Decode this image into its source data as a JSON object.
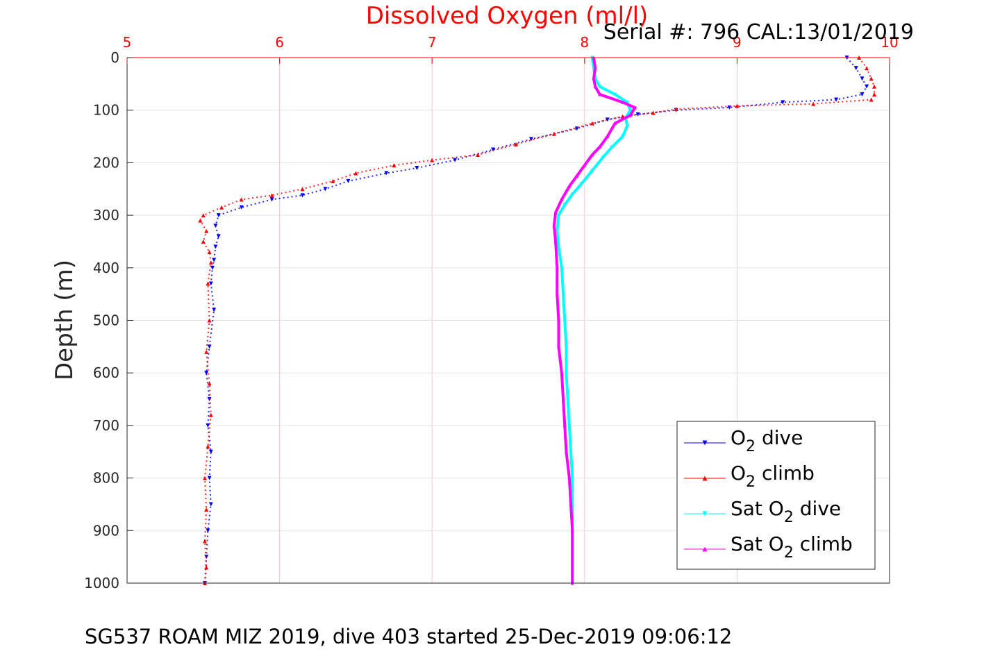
{
  "chart_data": {
    "type": "scatter",
    "title": "Dissolved Oxygen (ml/l)",
    "serial_text": "Serial #: 796  CAL:13/01/2019",
    "footer": "SG537 ROAM MIZ 2019, dive 403 started 25-Dec-2019 09:06:12",
    "ylabel": "Depth (m)",
    "xlim": [
      5,
      10
    ],
    "ylim": [
      0,
      1000
    ],
    "y_reversed": true,
    "x_axis_position": "top",
    "x_ticks": [
      "5",
      "6",
      "7",
      "8",
      "9",
      "10"
    ],
    "y_ticks": [
      "0",
      "100",
      "200",
      "300",
      "400",
      "500",
      "600",
      "700",
      "800",
      "900",
      "1000"
    ],
    "grid": true,
    "legend_position": "lower-right",
    "colors": {
      "x_axis": "#ff0000",
      "o2_dive": "#0000ff",
      "o2_climb": "#ff0000",
      "sat_dive": "#00ffff",
      "sat_climb": "#ff00ff"
    },
    "series": [
      {
        "name": "O2 dive",
        "legend": {
          "pre": "O",
          "sub": "2",
          "post": " dive"
        },
        "marker": "triangle-down",
        "x": [
          9.72,
          9.78,
          9.82,
          9.85,
          9.82,
          9.65,
          9.3,
          8.95,
          8.6,
          8.35,
          8.15,
          7.95,
          7.65,
          7.4,
          7.15,
          6.9,
          6.7,
          6.45,
          6.3,
          6.15,
          5.95,
          5.75,
          5.6,
          5.58,
          5.6,
          5.58,
          5.57,
          5.56,
          5.55,
          5.57,
          5.54,
          5.52,
          5.54,
          5.53,
          5.55,
          5.54,
          5.55,
          5.53,
          5.52,
          5.51
        ],
        "y": [
          0,
          20,
          40,
          55,
          70,
          80,
          85,
          95,
          100,
          108,
          118,
          135,
          155,
          175,
          195,
          210,
          220,
          235,
          250,
          262,
          270,
          285,
          300,
          320,
          340,
          360,
          385,
          400,
          430,
          480,
          550,
          600,
          650,
          700,
          750,
          800,
          850,
          900,
          950,
          1000
        ]
      },
      {
        "name": "O2 climb",
        "legend": {
          "pre": "O",
          "sub": "2",
          "post": " climb"
        },
        "marker": "triangle-up",
        "x": [
          9.8,
          9.85,
          9.88,
          9.9,
          9.9,
          9.88,
          9.5,
          9.0,
          8.6,
          8.45,
          8.25,
          8.05,
          7.8,
          7.55,
          7.3,
          7.0,
          6.75,
          6.5,
          6.35,
          6.15,
          5.95,
          5.75,
          5.62,
          5.5,
          5.48,
          5.52,
          5.5,
          5.54,
          5.55,
          5.53,
          5.54,
          5.52,
          5.54,
          5.55,
          5.53,
          5.51,
          5.52,
          5.51,
          5.52,
          5.51
        ],
        "y": [
          0,
          20,
          40,
          55,
          70,
          80,
          88,
          92,
          98,
          105,
          112,
          125,
          145,
          165,
          185,
          195,
          205,
          220,
          235,
          250,
          262,
          270,
          285,
          300,
          310,
          330,
          350,
          370,
          390,
          430,
          500,
          560,
          620,
          680,
          740,
          800,
          860,
          920,
          970,
          1000
        ]
      },
      {
        "name": "Sat O2 dive",
        "legend": {
          "pre": "Sat O",
          "sub": "2",
          "post": " dive"
        },
        "marker": "triangle-down",
        "x": [
          8.05,
          8.06,
          8.07,
          8.1,
          8.2,
          8.28,
          8.3,
          8.27,
          8.28,
          8.25,
          8.18,
          8.12,
          8.05,
          7.98,
          7.92,
          7.87,
          7.83,
          7.82,
          7.83,
          7.85,
          7.86,
          7.87,
          7.88,
          7.88,
          7.89,
          7.9,
          7.91,
          7.92,
          7.92,
          7.92,
          7.92
        ],
        "y": [
          0,
          20,
          40,
          55,
          70,
          85,
          100,
          115,
          130,
          150,
          170,
          190,
          215,
          240,
          260,
          280,
          300,
          330,
          360,
          400,
          450,
          500,
          550,
          600,
          650,
          700,
          750,
          800,
          850,
          900,
          1000
        ]
      },
      {
        "name": "Sat O2 climb",
        "legend": {
          "pre": "Sat O",
          "sub": "2",
          "post": " climb"
        },
        "marker": "triangle-up",
        "x": [
          8.06,
          8.07,
          8.06,
          8.07,
          8.1,
          8.25,
          8.33,
          8.3,
          8.2,
          8.15,
          8.1,
          8.05,
          8.0,
          7.95,
          7.9,
          7.85,
          7.81,
          7.8,
          7.81,
          7.82,
          7.82,
          7.83,
          7.83,
          7.85,
          7.86,
          7.87,
          7.88,
          7.9,
          7.91,
          7.92,
          7.92
        ],
        "y": [
          0,
          20,
          40,
          55,
          70,
          85,
          95,
          110,
          125,
          150,
          170,
          185,
          205,
          225,
          245,
          270,
          295,
          320,
          350,
          400,
          450,
          500,
          550,
          600,
          650,
          700,
          750,
          800,
          850,
          900,
          1000
        ]
      }
    ]
  }
}
